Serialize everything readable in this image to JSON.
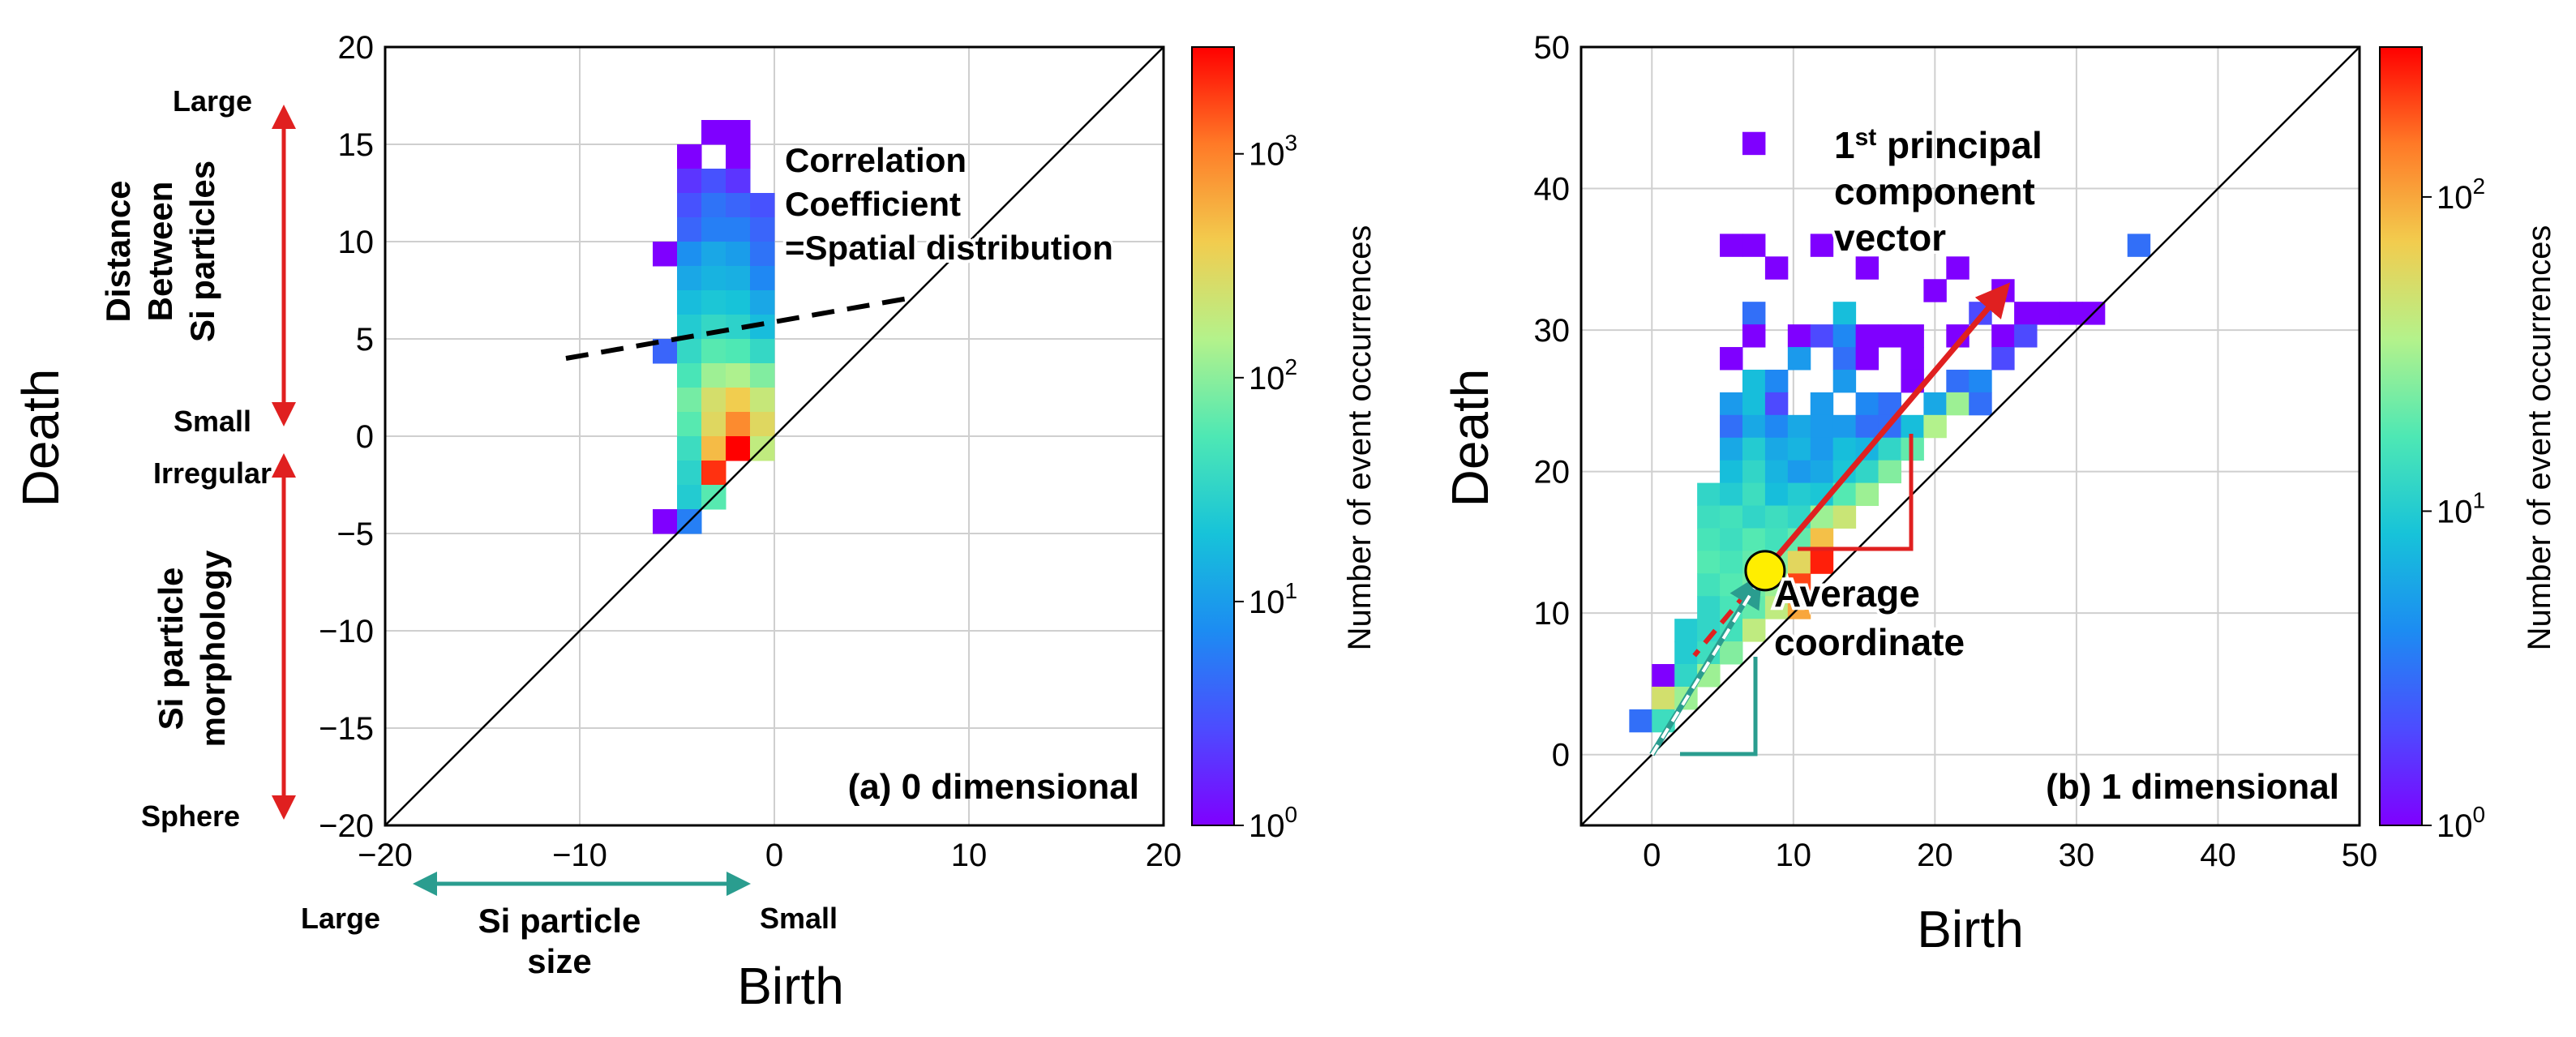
{
  "colors": {
    "red_arrow": "#e02020",
    "teal_arrow": "#2a9d8f",
    "avg_marker_fill": "#ffee00",
    "frame": "#000000",
    "grid": "#cfcfcf"
  },
  "chart_data": [
    {
      "type": "heatmap",
      "panel_label": "(a) 0 dimensional",
      "xlabel": "Birth",
      "ylabel": "Death",
      "xlim": [
        -20,
        20
      ],
      "ylim": [
        -20,
        20
      ],
      "xticks": [
        -20,
        -10,
        0,
        10,
        20
      ],
      "yticks": [
        -20,
        -15,
        -10,
        -5,
        0,
        5,
        10,
        15,
        20
      ],
      "xtick_labels": [
        "−20",
        "−10",
        "0",
        "10",
        "20"
      ],
      "ytick_labels": [
        "−20",
        "−15",
        "−10",
        "−5",
        "0",
        "5",
        "10",
        "15",
        "20"
      ],
      "bin_size": 1.25,
      "grid": true,
      "diagonal": true,
      "colorbar": {
        "label": "Number of event occurrences",
        "scale": "log",
        "min": 1,
        "max": 3000,
        "ticks": [
          {
            "base": "10",
            "exp": "0",
            "value": 1
          },
          {
            "base": "10",
            "exp": "1",
            "value": 10
          },
          {
            "base": "10",
            "exp": "2",
            "value": 100
          },
          {
            "base": "10",
            "exp": "3",
            "value": 1000
          }
        ]
      },
      "cells": [
        {
          "x": -3.75,
          "y": 15.0,
          "v": 1
        },
        {
          "x": -2.5,
          "y": 15.0,
          "v": 1
        },
        {
          "x": -5.0,
          "y": 13.75,
          "v": 1
        },
        {
          "x": -2.5,
          "y": 13.75,
          "v": 1
        },
        {
          "x": -5.0,
          "y": 12.5,
          "v": 2
        },
        {
          "x": -3.75,
          "y": 12.5,
          "v": 3
        },
        {
          "x": -2.5,
          "y": 12.5,
          "v": 2
        },
        {
          "x": -5.0,
          "y": 11.25,
          "v": 3
        },
        {
          "x": -3.75,
          "y": 11.25,
          "v": 5
        },
        {
          "x": -2.5,
          "y": 11.25,
          "v": 4
        },
        {
          "x": -1.25,
          "y": 11.25,
          "v": 3
        },
        {
          "x": -5.0,
          "y": 10.0,
          "v": 4
        },
        {
          "x": -3.75,
          "y": 10.0,
          "v": 6
        },
        {
          "x": -2.5,
          "y": 10.0,
          "v": 6
        },
        {
          "x": -1.25,
          "y": 10.0,
          "v": 4
        },
        {
          "x": -6.25,
          "y": 8.75,
          "v": 1
        },
        {
          "x": -5.0,
          "y": 8.75,
          "v": 8
        },
        {
          "x": -3.75,
          "y": 8.75,
          "v": 12
        },
        {
          "x": -2.5,
          "y": 8.75,
          "v": 10
        },
        {
          "x": -1.25,
          "y": 8.75,
          "v": 5
        },
        {
          "x": -5.0,
          "y": 7.5,
          "v": 12
        },
        {
          "x": -3.75,
          "y": 7.5,
          "v": 15
        },
        {
          "x": -2.5,
          "y": 7.5,
          "v": 14
        },
        {
          "x": -1.25,
          "y": 7.5,
          "v": 7
        },
        {
          "x": -5.0,
          "y": 6.25,
          "v": 18
        },
        {
          "x": -3.75,
          "y": 6.25,
          "v": 22
        },
        {
          "x": -2.5,
          "y": 6.25,
          "v": 20
        },
        {
          "x": -1.25,
          "y": 6.25,
          "v": 12
        },
        {
          "x": -5.0,
          "y": 5.0,
          "v": 25
        },
        {
          "x": -3.75,
          "y": 5.0,
          "v": 35
        },
        {
          "x": -2.5,
          "y": 5.0,
          "v": 30
        },
        {
          "x": -1.25,
          "y": 5.0,
          "v": 18
        },
        {
          "x": -6.25,
          "y": 3.75,
          "v": 4
        },
        {
          "x": -5.0,
          "y": 3.75,
          "v": 35
        },
        {
          "x": -3.75,
          "y": 3.75,
          "v": 60
        },
        {
          "x": -2.5,
          "y": 3.75,
          "v": 55
        },
        {
          "x": -1.25,
          "y": 3.75,
          "v": 35
        },
        {
          "x": -5.0,
          "y": 2.5,
          "v": 50
        },
        {
          "x": -3.75,
          "y": 2.5,
          "v": 120
        },
        {
          "x": -2.5,
          "y": 2.5,
          "v": 140
        },
        {
          "x": -1.25,
          "y": 2.5,
          "v": 90
        },
        {
          "x": -5.0,
          "y": 1.25,
          "v": 80
        },
        {
          "x": -3.75,
          "y": 1.25,
          "v": 250
        },
        {
          "x": -2.5,
          "y": 1.25,
          "v": 400
        },
        {
          "x": -1.25,
          "y": 1.25,
          "v": 200
        },
        {
          "x": -5.0,
          "y": 0.0,
          "v": 60
        },
        {
          "x": -3.75,
          "y": 0.0,
          "v": 300
        },
        {
          "x": -2.5,
          "y": 0.0,
          "v": 900
        },
        {
          "x": -1.25,
          "y": 0.0,
          "v": 300
        },
        {
          "x": -5.0,
          "y": -1.25,
          "v": 40
        },
        {
          "x": -3.75,
          "y": -1.25,
          "v": 500
        },
        {
          "x": -2.5,
          "y": -1.25,
          "v": 3000
        },
        {
          "x": -1.25,
          "y": -1.25,
          "v": 180
        },
        {
          "x": -5.0,
          "y": -2.5,
          "v": 30
        },
        {
          "x": -3.75,
          "y": -2.5,
          "v": 2000
        },
        {
          "x": -5.0,
          "y": -3.75,
          "v": 25
        },
        {
          "x": -3.75,
          "y": -3.75,
          "v": 60
        },
        {
          "x": -6.25,
          "y": -5.0,
          "v": 1
        },
        {
          "x": -5.0,
          "y": -5.0,
          "v": 6
        }
      ],
      "annotations": {
        "correlation_line1": "Correlation",
        "correlation_line2": "Coefficient",
        "correlation_line3": "=Spatial distribution",
        "distance_line1": "Distance",
        "distance_line2": "Between",
        "distance_line3": "Si particles",
        "label_large_top": "Large",
        "label_small": "Small",
        "label_irregular": "Irregular",
        "label_sphere": "Sphere",
        "morph_line1": "Si particle",
        "morph_line2": "morphology",
        "x_large": "Large",
        "x_small": "Small",
        "size_line1": "Si particle",
        "size_line2": "size"
      }
    },
    {
      "type": "heatmap",
      "panel_label": "(b) 1 dimensional",
      "xlabel": "Birth",
      "ylabel": "Death",
      "xlim": [
        -5,
        50
      ],
      "ylim": [
        -5,
        50
      ],
      "xticks": [
        0,
        10,
        20,
        30,
        40,
        50
      ],
      "yticks": [
        0,
        10,
        20,
        30,
        40,
        50
      ],
      "xtick_labels": [
        "0",
        "10",
        "20",
        "30",
        "40",
        "50"
      ],
      "ytick_labels": [
        "0",
        "10",
        "20",
        "30",
        "40",
        "50"
      ],
      "bin_size": 1.6,
      "grid": true,
      "diagonal": true,
      "average_coordinate": [
        8.0,
        13.0
      ],
      "principal_vector_end": [
        25.0,
        33.0
      ],
      "colorbar": {
        "label": "Number of event occurrences",
        "scale": "log",
        "min": 1,
        "max": 300,
        "ticks": [
          {
            "base": "10",
            "exp": "0",
            "value": 1
          },
          {
            "base": "10",
            "exp": "1",
            "value": 10
          },
          {
            "base": "10",
            "exp": "2",
            "value": 100
          }
        ]
      },
      "cells": [
        {
          "x": 6.4,
          "y": 42.4,
          "v": 1
        },
        {
          "x": 4.8,
          "y": 35.2,
          "v": 1
        },
        {
          "x": 6.4,
          "y": 35.2,
          "v": 1
        },
        {
          "x": 11.2,
          "y": 35.2,
          "v": 1
        },
        {
          "x": 33.6,
          "y": 35.2,
          "v": 3
        },
        {
          "x": 8.0,
          "y": 33.6,
          "v": 1
        },
        {
          "x": 14.4,
          "y": 33.6,
          "v": 1
        },
        {
          "x": 20.8,
          "y": 33.6,
          "v": 1
        },
        {
          "x": 19.2,
          "y": 32.0,
          "v": 1
        },
        {
          "x": 24.0,
          "y": 32.0,
          "v": 1
        },
        {
          "x": 6.4,
          "y": 30.4,
          "v": 3
        },
        {
          "x": 12.8,
          "y": 30.4,
          "v": 8
        },
        {
          "x": 22.4,
          "y": 30.4,
          "v": 2
        },
        {
          "x": 25.6,
          "y": 30.4,
          "v": 1
        },
        {
          "x": 27.2,
          "y": 30.4,
          "v": 1
        },
        {
          "x": 28.8,
          "y": 30.4,
          "v": 1
        },
        {
          "x": 30.4,
          "y": 30.4,
          "v": 1
        },
        {
          "x": 6.4,
          "y": 28.8,
          "v": 1
        },
        {
          "x": 9.6,
          "y": 28.8,
          "v": 1
        },
        {
          "x": 11.2,
          "y": 28.8,
          "v": 2
        },
        {
          "x": 12.8,
          "y": 28.8,
          "v": 4
        },
        {
          "x": 14.4,
          "y": 28.8,
          "v": 1
        },
        {
          "x": 16.0,
          "y": 28.8,
          "v": 1
        },
        {
          "x": 17.6,
          "y": 28.8,
          "v": 1
        },
        {
          "x": 20.8,
          "y": 28.8,
          "v": 1
        },
        {
          "x": 24.0,
          "y": 28.8,
          "v": 1
        },
        {
          "x": 25.6,
          "y": 28.8,
          "v": 2
        },
        {
          "x": 4.8,
          "y": 27.2,
          "v": 1
        },
        {
          "x": 9.6,
          "y": 27.2,
          "v": 5
        },
        {
          "x": 12.8,
          "y": 27.2,
          "v": 3
        },
        {
          "x": 14.4,
          "y": 27.2,
          "v": 1
        },
        {
          "x": 17.6,
          "y": 27.2,
          "v": 1
        },
        {
          "x": 24.0,
          "y": 27.2,
          "v": 2
        },
        {
          "x": 6.4,
          "y": 25.6,
          "v": 8
        },
        {
          "x": 8.0,
          "y": 25.6,
          "v": 4
        },
        {
          "x": 12.8,
          "y": 25.6,
          "v": 5
        },
        {
          "x": 17.6,
          "y": 25.6,
          "v": 1
        },
        {
          "x": 20.8,
          "y": 25.6,
          "v": 3
        },
        {
          "x": 22.4,
          "y": 25.6,
          "v": 4
        },
        {
          "x": 4.8,
          "y": 24.0,
          "v": 5
        },
        {
          "x": 6.4,
          "y": 24.0,
          "v": 8
        },
        {
          "x": 8.0,
          "y": 24.0,
          "v": 2
        },
        {
          "x": 11.2,
          "y": 24.0,
          "v": 5
        },
        {
          "x": 14.4,
          "y": 24.0,
          "v": 4
        },
        {
          "x": 16.0,
          "y": 24.0,
          "v": 3
        },
        {
          "x": 19.2,
          "y": 24.0,
          "v": 6
        },
        {
          "x": 20.8,
          "y": 24.0,
          "v": 30
        },
        {
          "x": 22.4,
          "y": 24.0,
          "v": 3
        },
        {
          "x": 4.8,
          "y": 22.4,
          "v": 3
        },
        {
          "x": 6.4,
          "y": 22.4,
          "v": 6
        },
        {
          "x": 8.0,
          "y": 22.4,
          "v": 4
        },
        {
          "x": 9.6,
          "y": 22.4,
          "v": 6
        },
        {
          "x": 11.2,
          "y": 22.4,
          "v": 5
        },
        {
          "x": 12.8,
          "y": 22.4,
          "v": 5
        },
        {
          "x": 14.4,
          "y": 22.4,
          "v": 3
        },
        {
          "x": 16.0,
          "y": 22.4,
          "v": 3
        },
        {
          "x": 17.6,
          "y": 22.4,
          "v": 8
        },
        {
          "x": 19.2,
          "y": 22.4,
          "v": 35
        },
        {
          "x": 4.8,
          "y": 20.8,
          "v": 6
        },
        {
          "x": 6.4,
          "y": 20.8,
          "v": 10
        },
        {
          "x": 8.0,
          "y": 20.8,
          "v": 6
        },
        {
          "x": 9.6,
          "y": 20.8,
          "v": 7
        },
        {
          "x": 11.2,
          "y": 20.8,
          "v": 5
        },
        {
          "x": 12.8,
          "y": 20.8,
          "v": 8
        },
        {
          "x": 14.4,
          "y": 20.8,
          "v": 7
        },
        {
          "x": 16.0,
          "y": 20.8,
          "v": 12
        },
        {
          "x": 17.6,
          "y": 20.8,
          "v": 20
        },
        {
          "x": 4.8,
          "y": 19.2,
          "v": 8
        },
        {
          "x": 6.4,
          "y": 19.2,
          "v": 12
        },
        {
          "x": 8.0,
          "y": 19.2,
          "v": 7
        },
        {
          "x": 9.6,
          "y": 19.2,
          "v": 5
        },
        {
          "x": 11.2,
          "y": 19.2,
          "v": 6
        },
        {
          "x": 12.8,
          "y": 19.2,
          "v": 9
        },
        {
          "x": 14.4,
          "y": 19.2,
          "v": 12
        },
        {
          "x": 16.0,
          "y": 19.2,
          "v": 25
        },
        {
          "x": 3.2,
          "y": 17.6,
          "v": 12
        },
        {
          "x": 4.8,
          "y": 17.6,
          "v": 10
        },
        {
          "x": 6.4,
          "y": 17.6,
          "v": 14
        },
        {
          "x": 8.0,
          "y": 17.6,
          "v": 8
        },
        {
          "x": 9.6,
          "y": 17.6,
          "v": 10
        },
        {
          "x": 11.2,
          "y": 17.6,
          "v": 9
        },
        {
          "x": 12.8,
          "y": 17.6,
          "v": 18
        },
        {
          "x": 14.4,
          "y": 17.6,
          "v": 30
        },
        {
          "x": 3.2,
          "y": 16.0,
          "v": 14
        },
        {
          "x": 4.8,
          "y": 16.0,
          "v": 15
        },
        {
          "x": 6.4,
          "y": 16.0,
          "v": 12
        },
        {
          "x": 8.0,
          "y": 16.0,
          "v": 14
        },
        {
          "x": 9.6,
          "y": 16.0,
          "v": 12
        },
        {
          "x": 11.2,
          "y": 16.0,
          "v": 30
        },
        {
          "x": 12.8,
          "y": 16.0,
          "v": 45
        },
        {
          "x": 3.2,
          "y": 14.4,
          "v": 16
        },
        {
          "x": 4.8,
          "y": 14.4,
          "v": 14
        },
        {
          "x": 6.4,
          "y": 14.4,
          "v": 18
        },
        {
          "x": 8.0,
          "y": 14.4,
          "v": 15
        },
        {
          "x": 9.6,
          "y": 14.4,
          "v": 20
        },
        {
          "x": 11.2,
          "y": 14.4,
          "v": 80
        },
        {
          "x": 3.2,
          "y": 12.8,
          "v": 18
        },
        {
          "x": 4.8,
          "y": 12.8,
          "v": 16
        },
        {
          "x": 6.4,
          "y": 12.8,
          "v": 20
        },
        {
          "x": 8.0,
          "y": 12.8,
          "v": 25
        },
        {
          "x": 9.6,
          "y": 12.8,
          "v": 60
        },
        {
          "x": 11.2,
          "y": 12.8,
          "v": 250
        },
        {
          "x": 3.2,
          "y": 11.2,
          "v": 15
        },
        {
          "x": 4.8,
          "y": 11.2,
          "v": 18
        },
        {
          "x": 6.4,
          "y": 11.2,
          "v": 22
        },
        {
          "x": 8.0,
          "y": 11.2,
          "v": 30
        },
        {
          "x": 9.6,
          "y": 11.2,
          "v": 200
        },
        {
          "x": 3.2,
          "y": 9.6,
          "v": 12
        },
        {
          "x": 4.8,
          "y": 9.6,
          "v": 16
        },
        {
          "x": 6.4,
          "y": 9.6,
          "v": 20
        },
        {
          "x": 8.0,
          "y": 9.6,
          "v": 40
        },
        {
          "x": 9.6,
          "y": 9.6,
          "v": 100
        },
        {
          "x": 1.6,
          "y": 8.0,
          "v": 10
        },
        {
          "x": 3.2,
          "y": 8.0,
          "v": 12
        },
        {
          "x": 4.8,
          "y": 8.0,
          "v": 15
        },
        {
          "x": 6.4,
          "y": 8.0,
          "v": 40
        },
        {
          "x": 1.6,
          "y": 6.4,
          "v": 10
        },
        {
          "x": 3.2,
          "y": 6.4,
          "v": 14
        },
        {
          "x": 4.8,
          "y": 6.4,
          "v": 25
        },
        {
          "x": 0.0,
          "y": 4.8,
          "v": 1
        },
        {
          "x": 1.6,
          "y": 4.8,
          "v": 12
        },
        {
          "x": 3.2,
          "y": 4.8,
          "v": 30
        },
        {
          "x": 0.0,
          "y": 3.2,
          "v": 50
        },
        {
          "x": 1.6,
          "y": 3.2,
          "v": 30
        },
        {
          "x": -1.6,
          "y": 1.6,
          "v": 3
        },
        {
          "x": 0.0,
          "y": 1.6,
          "v": 14
        }
      ],
      "annotations": {
        "pc_line1_base": "1",
        "pc_line1_sup": "st",
        "pc_line1_rest": " principal",
        "pc_line2": "component",
        "pc_line3": "vector",
        "avg_line1": "Average",
        "avg_line2": "coordinate"
      }
    }
  ]
}
